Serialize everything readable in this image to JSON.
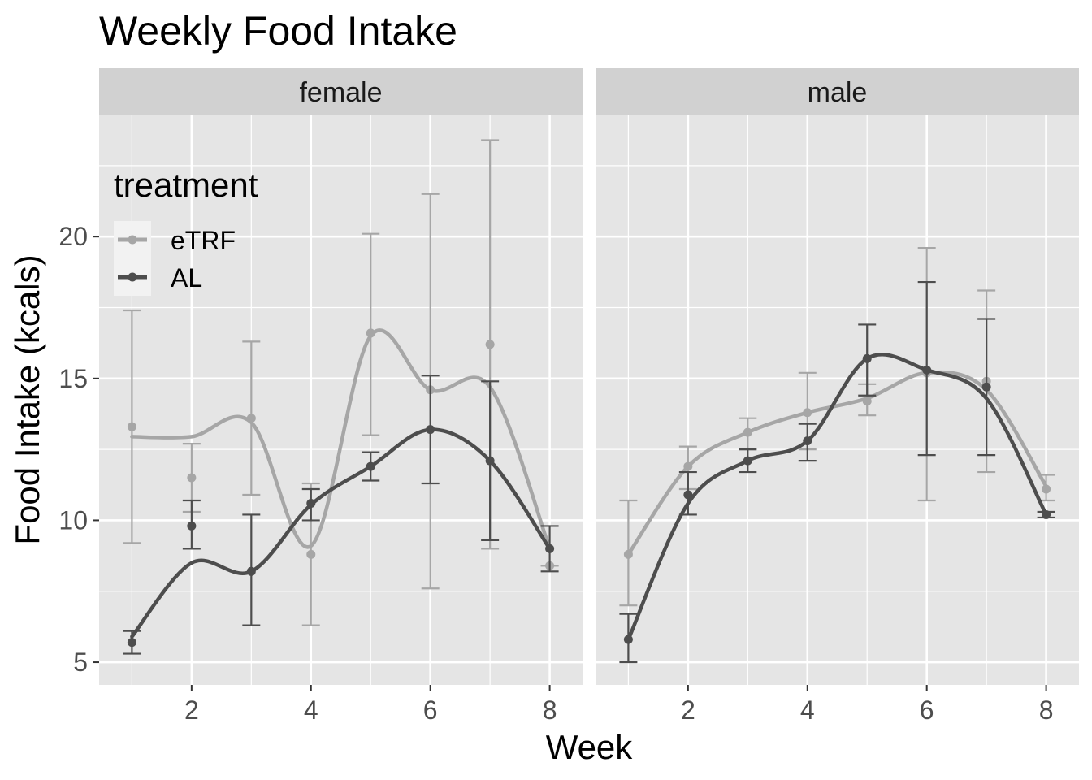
{
  "chart_data": {
    "type": "line",
    "title": "Weekly Food Intake",
    "xlabel": "Week",
    "ylabel": "Food Intake (kcals)",
    "xlim": [
      0.45,
      8.55
    ],
    "ylim": [
      4.2,
      24.3
    ],
    "x_ticks": [
      2,
      4,
      6,
      8
    ],
    "y_ticks": [
      5,
      10,
      15,
      20
    ],
    "x_tick_labels": [
      "2",
      "4",
      "6",
      "8"
    ],
    "y_tick_labels": [
      "5",
      "10",
      "15",
      "20"
    ],
    "legend": {
      "title": "treatment",
      "placement": "top-left inside",
      "entries": [
        "eTRF",
        "AL"
      ]
    },
    "colors": {
      "eTRF": "#a6a6a6",
      "AL": "#4d4d4d",
      "panel_bg": "#e5e5e5",
      "strip_bg": "#d1d1d1",
      "grid": "#ffffff"
    },
    "x": [
      1,
      2,
      3,
      4,
      5,
      6,
      7,
      8
    ],
    "panels": [
      {
        "facet": "female",
        "series": [
          {
            "name": "eTRF",
            "y": [
              13.3,
              11.5,
              13.6,
              8.8,
              16.6,
              14.6,
              16.2,
              8.4
            ],
            "ymin": [
              9.2,
              10.3,
              10.9,
              6.3,
              13.0,
              7.6,
              9.0,
              8.4
            ],
            "ymax": [
              17.4,
              12.7,
              16.3,
              11.3,
              20.1,
              21.5,
              23.4,
              8.4
            ],
            "smooth": [
              [
                1,
                12.95
              ],
              [
                2,
                12.95
              ],
              [
                3,
                13.45
              ],
              [
                4,
                9.1
              ],
              [
                5,
                16.5
              ],
              [
                6,
                14.6
              ],
              [
                7,
                14.7
              ],
              [
                8,
                9.0
              ]
            ]
          },
          {
            "name": "AL",
            "y": [
              5.7,
              9.8,
              8.2,
              10.6,
              11.9,
              13.2,
              12.1,
              9.0
            ],
            "ymin": [
              5.3,
              9.0,
              6.3,
              10.0,
              11.4,
              11.3,
              9.3,
              8.2
            ],
            "ymax": [
              6.1,
              10.7,
              10.2,
              11.1,
              12.4,
              15.1,
              14.9,
              9.8
            ],
            "smooth": [
              [
                1,
                5.9
              ],
              [
                2,
                8.5
              ],
              [
                3,
                8.2
              ],
              [
                4,
                10.55
              ],
              [
                5,
                11.9
              ],
              [
                6,
                13.2
              ],
              [
                7,
                12.1
              ],
              [
                8,
                9.0
              ]
            ]
          }
        ]
      },
      {
        "facet": "male",
        "series": [
          {
            "name": "eTRF",
            "y": [
              8.8,
              11.9,
              13.1,
              13.8,
              14.2,
              15.2,
              14.9,
              11.1
            ],
            "ymin": [
              7.0,
              11.1,
              12.5,
              12.5,
              13.7,
              10.7,
              11.7,
              10.7
            ],
            "ymax": [
              10.7,
              12.6,
              13.6,
              15.2,
              14.8,
              19.6,
              18.1,
              11.6
            ],
            "smooth": [
              [
                1,
                8.8
              ],
              [
                2,
                11.9
              ],
              [
                3,
                13.1
              ],
              [
                4,
                13.8
              ],
              [
                5,
                14.3
              ],
              [
                6,
                15.2
              ],
              [
                7,
                14.6
              ],
              [
                8,
                11.2
              ]
            ]
          },
          {
            "name": "AL",
            "y": [
              5.8,
              10.9,
              12.1,
              12.8,
              15.7,
              15.3,
              14.7,
              10.2
            ],
            "ymin": [
              5.0,
              10.2,
              11.7,
              12.1,
              14.4,
              12.3,
              12.3,
              10.1
            ],
            "ymax": [
              6.7,
              11.7,
              12.5,
              13.4,
              16.9,
              18.4,
              17.1,
              10.3
            ],
            "smooth": [
              [
                1,
                5.8
              ],
              [
                2,
                10.6
              ],
              [
                3,
                12.1
              ],
              [
                4,
                12.8
              ],
              [
                5,
                15.7
              ],
              [
                6,
                15.3
              ],
              [
                7,
                14.3
              ],
              [
                8,
                10.2
              ]
            ]
          }
        ]
      }
    ]
  }
}
